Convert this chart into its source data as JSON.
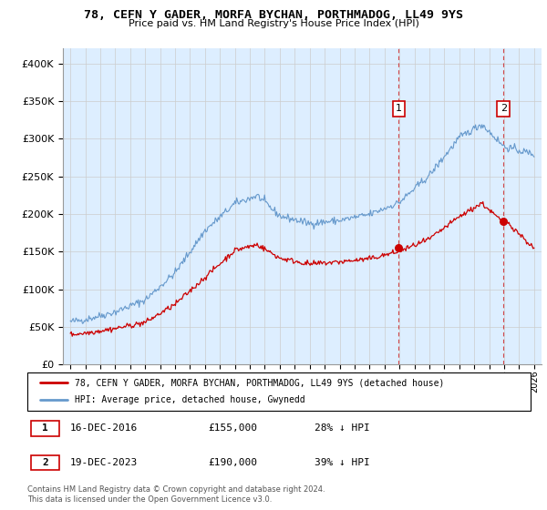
{
  "title": "78, CEFN Y GADER, MORFA BYCHAN, PORTHMADOG, LL49 9YS",
  "subtitle": "Price paid vs. HM Land Registry's House Price Index (HPI)",
  "legend_line1": "78, CEFN Y GADER, MORFA BYCHAN, PORTHMADOG, LL49 9YS (detached house)",
  "legend_line2": "HPI: Average price, detached house, Gwynedd",
  "annotation1_label": "1",
  "annotation1_date": "16-DEC-2016",
  "annotation1_price": "£155,000",
  "annotation1_hpi": "28% ↓ HPI",
  "annotation2_label": "2",
  "annotation2_date": "19-DEC-2023",
  "annotation2_price": "£190,000",
  "annotation2_hpi": "39% ↓ HPI",
  "footer": "Contains HM Land Registry data © Crown copyright and database right 2024.\nThis data is licensed under the Open Government Licence v3.0.",
  "ylim": [
    0,
    420000
  ],
  "yticks": [
    0,
    50000,
    100000,
    150000,
    200000,
    250000,
    300000,
    350000,
    400000
  ],
  "sale1_year": 2016.96,
  "sale1_price": 155000,
  "sale2_year": 2023.96,
  "sale2_price": 190000,
  "line_color_red": "#cc0000",
  "line_color_blue": "#6699cc",
  "vline_color": "#cc0000",
  "grid_color": "#cccccc",
  "background_color": "#ffffff",
  "plot_bg_color": "#ddeeff",
  "annotation_box_edge_color": "#cc0000",
  "xmin": 1995,
  "xmax": 2026
}
